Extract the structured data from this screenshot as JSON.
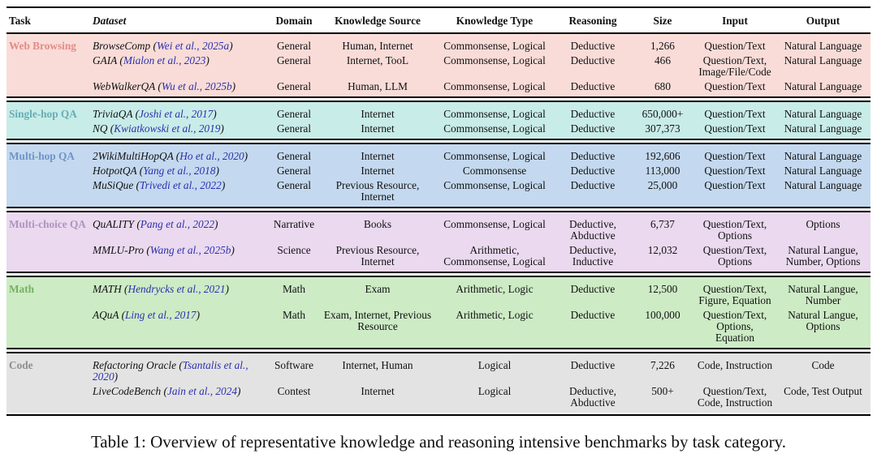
{
  "headers": [
    "Task",
    "Dataset",
    "Domain",
    "Knowledge Source",
    "Knowledge Type",
    "Reasoning",
    "Size",
    "Input",
    "Output"
  ],
  "groups": [
    {
      "task": "Web Browsing",
      "color": "#e58a86",
      "bg": "#f9dcd8",
      "rows": [
        {
          "name": "BrowseComp",
          "cite": "Wei et al., 2025a",
          "domain": "General",
          "source": "Human, Internet",
          "ktype": "Commonsense, Logical",
          "reasoning": "Deductive",
          "size": "1,266",
          "input": "Question/Text",
          "output": "Natural Language"
        },
        {
          "name": "GAIA",
          "cite": "Mialon et al., 2023",
          "domain": "General",
          "source": "Internet, TooL",
          "ktype": "Commonsense, Logical",
          "reasoning": "Deductive",
          "size": "466",
          "input": "Question/Text, Image/File/Code",
          "output": "Natural Language"
        },
        {
          "name": "WebWalkerQA",
          "cite": "Wu et al., 2025b",
          "domain": "General",
          "source": "Human, LLM",
          "ktype": "Commonsense, Logical",
          "reasoning": "Deductive",
          "size": "680",
          "input": "Question/Text",
          "output": "Natural Language"
        }
      ]
    },
    {
      "task": "Single-hop QA",
      "color": "#66aeb4",
      "bg": "#c8ece8",
      "rows": [
        {
          "name": "TriviaQA",
          "cite": "Joshi et al., 2017",
          "domain": "General",
          "source": "Internet",
          "ktype": "Commonsense, Logical",
          "reasoning": "Deductive",
          "size": "650,000+",
          "input": "Question/Text",
          "output": "Natural Language"
        },
        {
          "name": "NQ",
          "cite": "Kwiatkowski et al., 2019",
          "domain": "General",
          "source": "Internet",
          "ktype": "Commonsense, Logical",
          "reasoning": "Deductive",
          "size": "307,373",
          "input": "Question/Text",
          "output": "Natural Language"
        }
      ]
    },
    {
      "task": "Multi-hop QA",
      "color": "#6e94c8",
      "bg": "#c4d9ef",
      "rows": [
        {
          "name": "2WikiMultiHopQA",
          "cite": "Ho et al., 2020",
          "domain": "General",
          "source": "Internet",
          "ktype": "Commonsense, Logical",
          "reasoning": "Deductive",
          "size": "192,606",
          "input": "Question/Text",
          "output": "Natural Language"
        },
        {
          "name": "HotpotQA",
          "cite": "Yang et al., 2018",
          "domain": "General",
          "source": "Internet",
          "ktype": "Commonsense",
          "reasoning": "Deductive",
          "size": "113,000",
          "input": "Question/Text",
          "output": "Natural Language"
        },
        {
          "name": "MuSiQue",
          "cite": "Trivedi et al., 2022",
          "domain": "General",
          "source": "Previous Resource, Internet",
          "ktype": "Commonsense, Logical",
          "reasoning": "Deductive",
          "size": "25,000",
          "input": "Question/Text",
          "output": "Natural Language"
        }
      ]
    },
    {
      "task": "Multi-choice QA",
      "color": "#b094bd",
      "bg": "#ead9ef",
      "rows": [
        {
          "name": "QuALITY",
          "cite": "Pang et al., 2022",
          "domain": "Narrative",
          "source": "Books",
          "ktype": "Commonsense, Logical",
          "reasoning": "Deductive, Abductive",
          "size": "6,737",
          "input": "Question/Text, Options",
          "output": "Options"
        },
        {
          "name": "MMLU-Pro",
          "cite": "Wang et al., 2025b",
          "domain": "Science",
          "source": "Previous Resource, Internet",
          "ktype": "Arithmetic, Commonsense, Logical",
          "reasoning": "Deductive, Inductive",
          "size": "12,032",
          "input": "Question/Text, Options",
          "output": "Natural Langue, Number, Options"
        }
      ]
    },
    {
      "task": "Math",
      "color": "#76b15f",
      "bg": "#cdebc5",
      "rows": [
        {
          "name": "MATH",
          "cite": "Hendrycks et al., 2021",
          "domain": "Math",
          "source": "Exam",
          "ktype": "Arithmetic, Logic",
          "reasoning": "Deductive",
          "size": "12,500",
          "input": "Question/Text, Figure, Equation",
          "output": "Natural Langue, Number"
        },
        {
          "name": "AQuA",
          "cite": "Ling et al., 2017",
          "domain": "Math",
          "source": "Exam, Internet, Previous Resource",
          "ktype": "Arithmetic, Logic",
          "reasoning": "Deductive",
          "size": "100,000",
          "input": "Question/Text, Options, Equation",
          "output": "Natural Langue, Options"
        }
      ]
    },
    {
      "task": "Code",
      "color": "#8e8e8e",
      "bg": "#e3e3e3",
      "rows": [
        {
          "name": "Refactoring Oracle",
          "cite": "Tsantalis et al., 2020",
          "domain": "Software",
          "source": "Internet, Human",
          "ktype": "Logical",
          "reasoning": "Deductive",
          "size": "7,226",
          "input": "Code, Instruction",
          "output": "Code"
        },
        {
          "name": "LiveCodeBench",
          "cite": "Jain et al., 2024",
          "domain": "Contest",
          "source": "Internet",
          "ktype": "Logical",
          "reasoning": "Deductive, Abductive",
          "size": "500+",
          "input": "Question/Text, Code, Instruction",
          "output": "Code, Test Output"
        }
      ]
    }
  ],
  "caption": "Table 1: Overview of representative knowledge and reasoning intensive benchmarks by task category."
}
